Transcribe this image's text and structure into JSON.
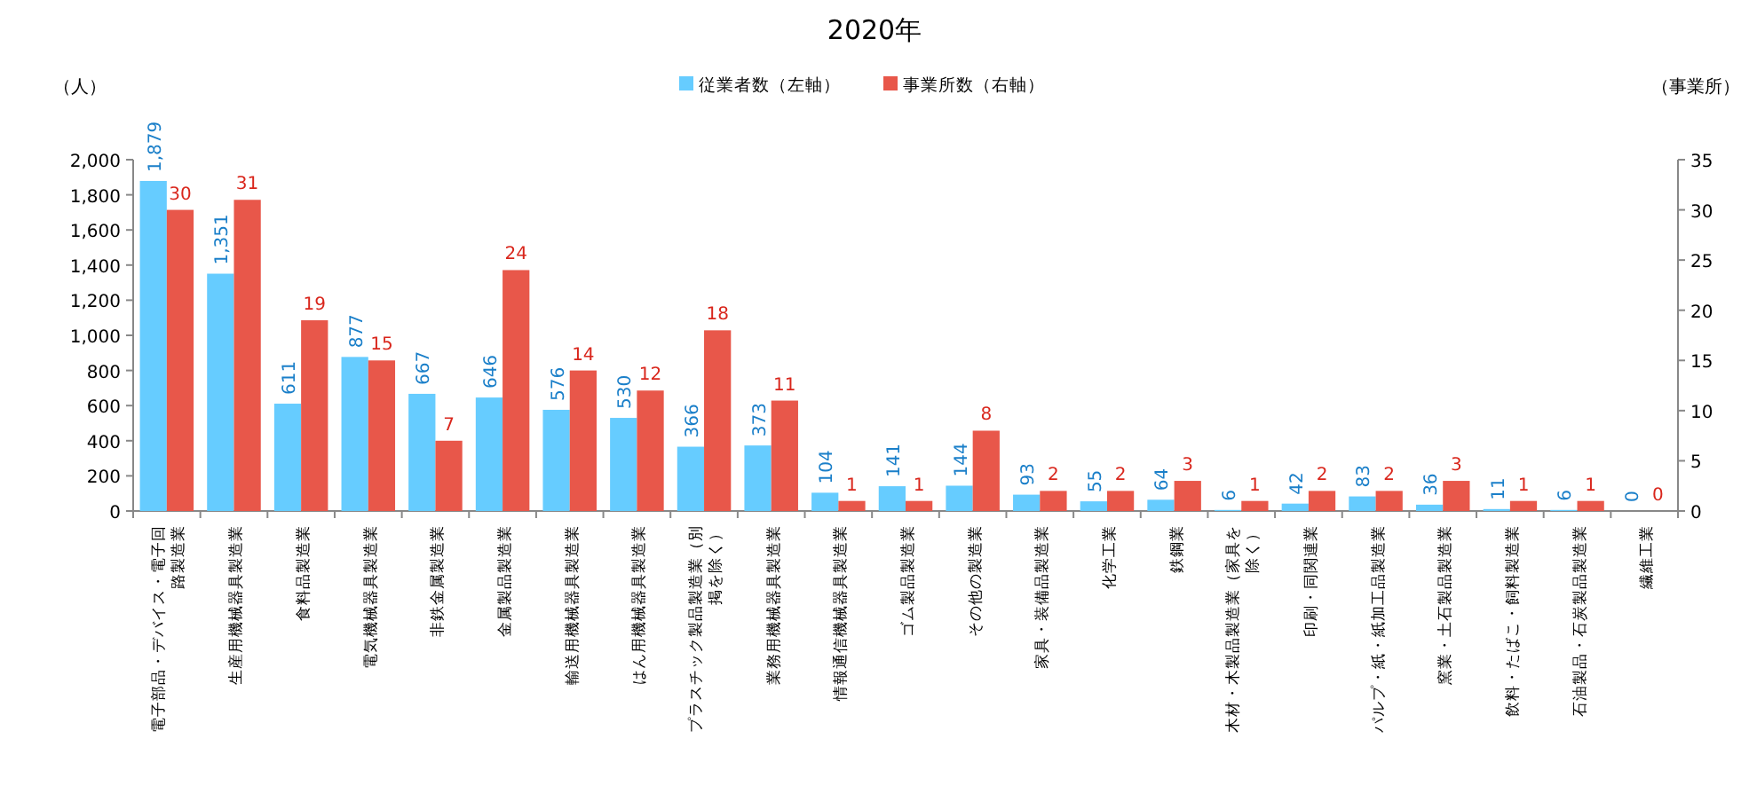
{
  "chart_data": {
    "type": "bar",
    "title": "2020年",
    "ylabel": "（人）",
    "y2label": "（事業所）",
    "categories": [
      "電子部品・デバイス・電子回路製造業",
      "生産用機械器具製造業",
      "食料品製造業",
      "電気機械器具製造業",
      "非鉄金属製造業",
      "金属製品製造業",
      "輸送用機械器具製造業",
      "はん用機械器具製造業",
      "プラスチック製品製造業（別掲を除く）",
      "業務用機械器具製造業",
      "情報通信機械器具製造業",
      "ゴム製品製造業",
      "その他の製造業",
      "家具・装備品製造業",
      "化学工業",
      "鉄鋼業",
      "木材・木製品製造業（家具を除く）",
      "印刷・同関連業",
      "パルプ・紙・紙加工品製造業",
      "窯業・土石製品製造業",
      "飲料・たばこ・飼料製造業",
      "石油製品・石炭製品製造業",
      "繊維工業"
    ],
    "series": [
      {
        "name": "従業者数（左軸）",
        "color": "#66ccff",
        "values": [
          1879,
          1351,
          611,
          877,
          667,
          646,
          576,
          530,
          366,
          373,
          104,
          141,
          144,
          93,
          55,
          64,
          6,
          42,
          83,
          36,
          11,
          6,
          0
        ],
        "value_labels": [
          "1,879",
          "1,351",
          "611",
          "877",
          "667",
          "646",
          "576",
          "530",
          "366",
          "373",
          "104",
          "141",
          "144",
          "93",
          "55",
          "64",
          "6",
          "42",
          "83",
          "36",
          "11",
          "6",
          "0"
        ]
      },
      {
        "name": "事業所数（右軸）",
        "color": "#e8574a",
        "axis": "y2",
        "values": [
          30,
          31,
          19,
          15,
          7,
          24,
          14,
          12,
          18,
          11,
          1,
          1,
          8,
          2,
          2,
          3,
          1,
          2,
          2,
          3,
          1,
          1,
          0
        ],
        "value_labels": [
          "30",
          "31",
          "19",
          "15",
          "7",
          "24",
          "14",
          "12",
          "18",
          "11",
          "1",
          "1",
          "8",
          "2",
          "2",
          "3",
          "1",
          "2",
          "2",
          "3",
          "1",
          "1",
          "0"
        ]
      }
    ],
    "ylim": [
      0,
      2000
    ],
    "yticks": [
      0,
      {
        "value": 200,
        "label": "200"
      },
      {
        "value": 400,
        "label": "400"
      },
      {
        "value": 600,
        "label": "600"
      },
      {
        "value": 800,
        "label": "800"
      },
      {
        "value": 1000,
        "label": "1,000"
      },
      {
        "value": 1200,
        "label": "1,200"
      },
      {
        "value": 1400,
        "label": "1,400"
      },
      {
        "value": 1600,
        "label": "1,600"
      },
      {
        "value": 1800,
        "label": "1,800"
      },
      {
        "value": 2000,
        "label": "2,000"
      }
    ],
    "y2lim": [
      0,
      35
    ],
    "y2ticks": [
      0,
      5,
      10,
      15,
      20,
      25,
      30,
      35
    ],
    "legend": "top",
    "grid": false
  }
}
